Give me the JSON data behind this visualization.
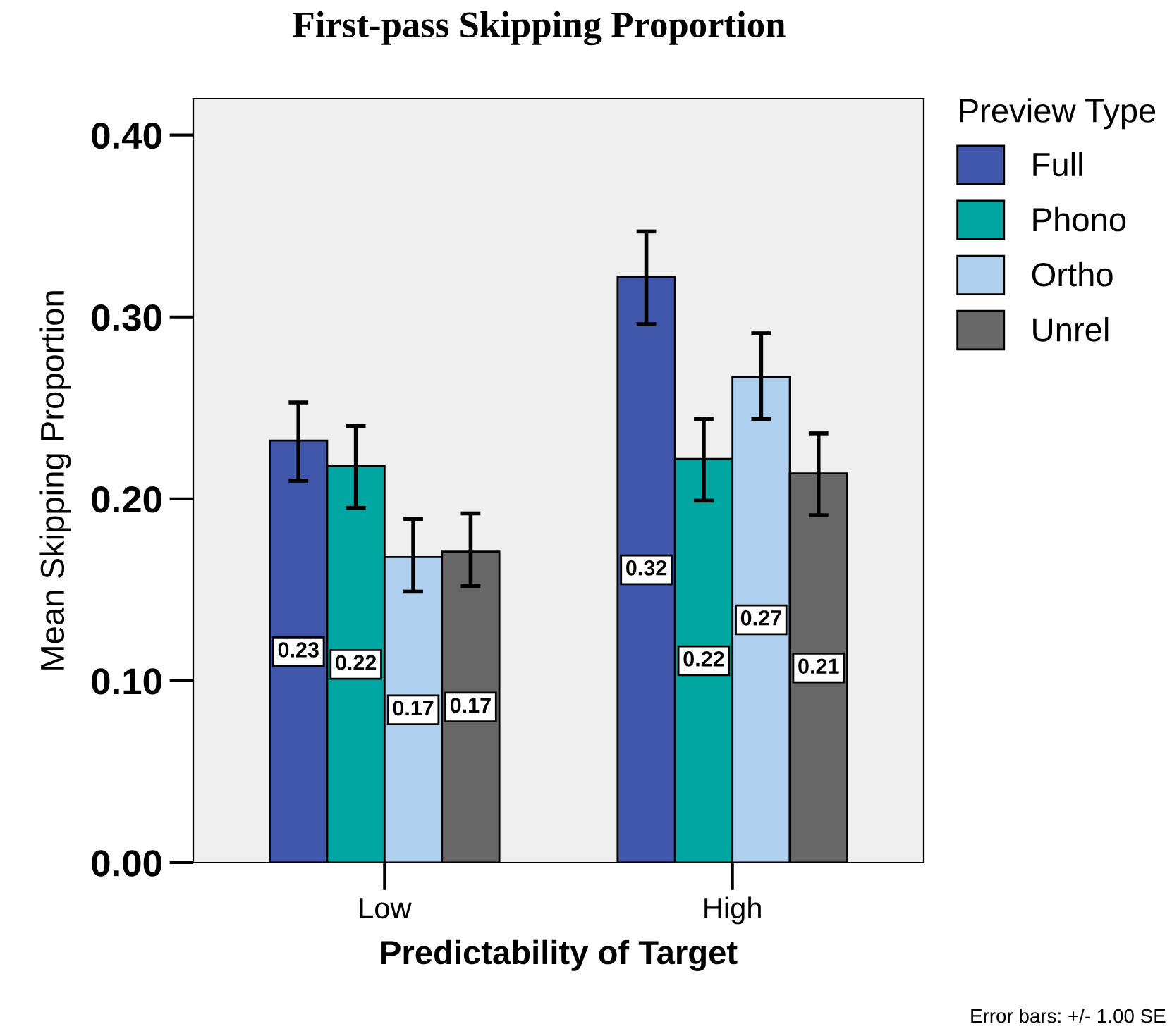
{
  "chart_data": {
    "type": "bar",
    "title": "First-pass Skipping Proportion",
    "xlabel": "Predictability of Target",
    "ylabel": "Mean Skipping Proportion",
    "legend_title": "Preview Type",
    "categories": [
      "Low",
      "High"
    ],
    "series": [
      {
        "name": "Full",
        "color": "#3f56aa",
        "values": [
          0.232,
          0.322
        ],
        "errors": [
          [
            0.21,
            0.253
          ],
          [
            0.296,
            0.347
          ]
        ],
        "value_labels": [
          "0.23",
          "0.32"
        ]
      },
      {
        "name": "Phono",
        "color": "#00a6a2",
        "values": [
          0.218,
          0.222
        ],
        "errors": [
          [
            0.195,
            0.24
          ],
          [
            0.199,
            0.244
          ]
        ],
        "value_labels": [
          "0.22",
          "0.22"
        ]
      },
      {
        "name": "Ortho",
        "color": "#aecfee",
        "values": [
          0.168,
          0.267
        ],
        "errors": [
          [
            0.149,
            0.189
          ],
          [
            0.244,
            0.291
          ]
        ],
        "value_labels": [
          "0.17",
          "0.27"
        ]
      },
      {
        "name": "Unrel",
        "color": "#676767",
        "values": [
          0.171,
          0.214
        ],
        "errors": [
          [
            0.152,
            0.192
          ],
          [
            0.191,
            0.236
          ]
        ],
        "value_labels": [
          "0.17",
          "0.21"
        ]
      }
    ],
    "ylim": [
      0,
      0.42
    ],
    "yticks": [
      {
        "value": 0,
        "label": "0.00"
      },
      {
        "value": 0.1,
        "label": "0.10"
      },
      {
        "value": 0.2,
        "label": "0.20"
      },
      {
        "value": 0.3,
        "label": "0.30"
      },
      {
        "value": 0.4,
        "label": "0.40"
      }
    ],
    "grid": false,
    "legend": "top right",
    "annotations": [
      "Error bars: +/- 1.00 SE"
    ]
  }
}
